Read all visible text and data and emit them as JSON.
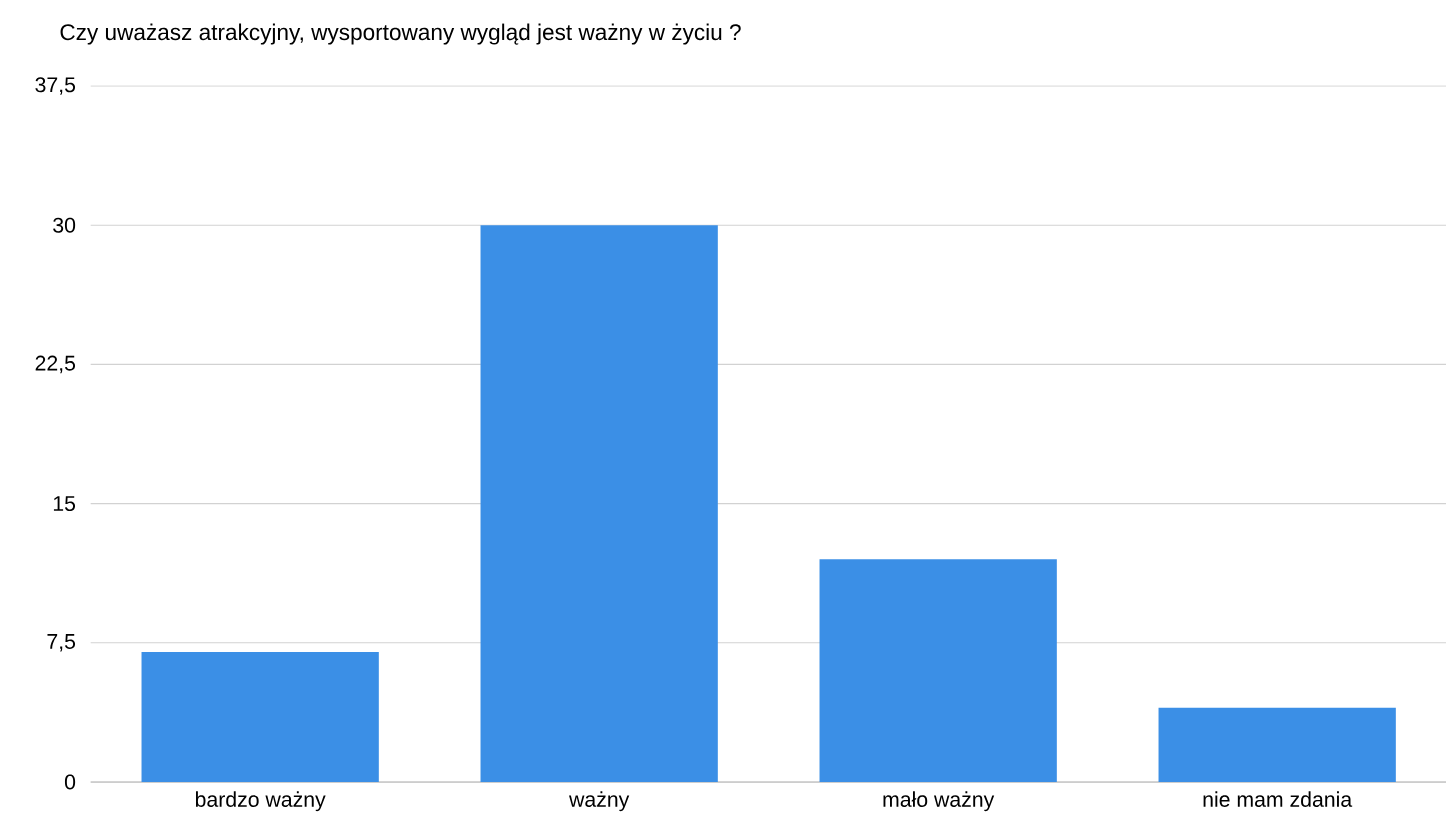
{
  "chart_data": {
    "type": "bar",
    "title": "Czy uważasz atrakcyjny, wysportowany wygląd jest ważny w życiu ?",
    "categories": [
      "bardzo ważny",
      "ważny",
      "mało ważny",
      "nie mam zdania"
    ],
    "values": [
      7,
      30,
      12,
      4
    ],
    "color": "#3b8fe6",
    "ylim": [
      0,
      37.5
    ],
    "yticks": [
      0,
      {
        "value": 7.5,
        "label": "7,5"
      },
      15,
      {
        "value": 22.5,
        "label": "22,5"
      },
      30,
      {
        "value": 37.5,
        "label": "37,5"
      }
    ],
    "grid": "y"
  }
}
